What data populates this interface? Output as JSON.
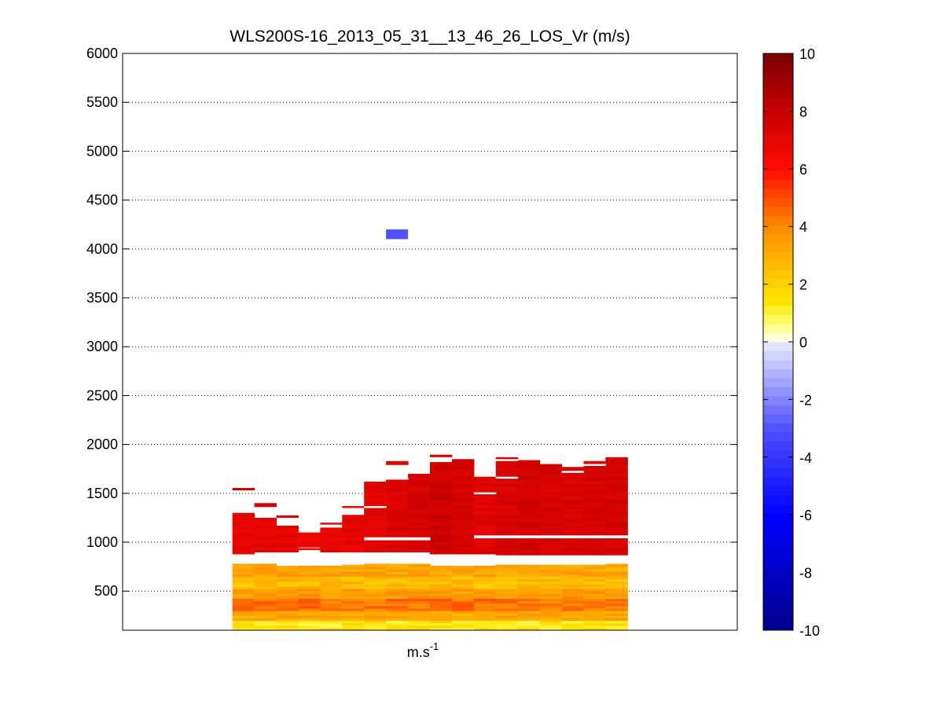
{
  "chart_data": {
    "type": "heatmap",
    "title": "WLS200S-16_2013_05_31__13_46_26_LOS_Vr (m/s)",
    "xlabel_base": "m.s",
    "xlabel_exp": "-1",
    "ylabel": "",
    "ylim": [
      100,
      6000
    ],
    "y_ticks": [
      500,
      1000,
      1500,
      2000,
      2500,
      3000,
      3500,
      4000,
      4500,
      5000,
      5500,
      6000
    ],
    "y_tick_labels": [
      "500",
      "1000",
      "1500",
      "2000",
      "2500",
      "3000",
      "3500",
      "4000",
      "4500",
      "5000",
      "5500",
      "6000"
    ],
    "grid": "horizontal dotted",
    "colorbar": {
      "range": [
        -10,
        10
      ],
      "ticks": [
        -10,
        -8,
        -6,
        -4,
        -2,
        0,
        2,
        4,
        6,
        8,
        10
      ],
      "tick_labels": [
        "-10",
        "-8",
        "-6",
        "-4",
        "-2",
        "0",
        "2",
        "4",
        "6",
        "8",
        "10"
      ]
    },
    "xlim": [
      0,
      28
    ],
    "profiles": [
      {
        "col": 5,
        "lower_top": 780,
        "upper_bottom": 880,
        "upper_top": 1300,
        "upper_v": 7.0,
        "extras": [
          [
            1530,
            1555,
            7.6
          ]
        ]
      },
      {
        "col": 6,
        "lower_top": 780,
        "upper_bottom": 900,
        "upper_top": 1250,
        "upper_v": 7.0,
        "extras": [
          [
            1360,
            1400,
            7.4
          ]
        ]
      },
      {
        "col": 7,
        "lower_top": 760,
        "upper_bottom": 900,
        "upper_top": 1170,
        "upper_v": 7.0,
        "extras": [
          [
            1250,
            1275,
            7.6
          ]
        ]
      },
      {
        "col": 8,
        "lower_top": 760,
        "upper_bottom": 950,
        "upper_top": 1100,
        "upper_v": 6.8,
        "extras": [
          [
            920,
            940,
            7.0
          ]
        ]
      },
      {
        "col": 9,
        "lower_top": 760,
        "upper_bottom": 900,
        "upper_top": 1150,
        "upper_v": 6.8,
        "extras": [
          [
            1180,
            1200,
            7.0
          ]
        ]
      },
      {
        "col": 10,
        "lower_top": 770,
        "upper_bottom": 900,
        "upper_top": 1280,
        "upper_v": 6.9,
        "extras": [
          [
            1350,
            1370,
            6.8
          ]
        ]
      },
      {
        "col": 11,
        "lower_top": 780,
        "upper_bottom": 900,
        "upper_top": 1620,
        "upper_v": 7.1,
        "extras": []
      },
      {
        "col": 12,
        "lower_top": 780,
        "upper_bottom": 900,
        "upper_top": 1650,
        "upper_v": 7.3,
        "extras": [
          [
            1790,
            1830,
            7.2
          ]
        ]
      },
      {
        "col": 13,
        "lower_top": 780,
        "upper_bottom": 900,
        "upper_top": 1700,
        "upper_v": 7.5,
        "extras": []
      },
      {
        "col": 14,
        "lower_top": 760,
        "upper_bottom": 880,
        "upper_top": 1820,
        "upper_v": 7.8,
        "extras": [
          [
            1870,
            1895,
            7.6
          ]
        ]
      },
      {
        "col": 15,
        "lower_top": 760,
        "upper_bottom": 880,
        "upper_top": 1850,
        "upper_v": 7.6,
        "extras": []
      },
      {
        "col": 16,
        "lower_top": 760,
        "upper_bottom": 880,
        "upper_top": 1670,
        "upper_v": 7.2,
        "extras": []
      },
      {
        "col": 17,
        "lower_top": 770,
        "upper_bottom": 870,
        "upper_top": 1870,
        "upper_v": 7.5,
        "extras": []
      },
      {
        "col": 18,
        "lower_top": 770,
        "upper_bottom": 870,
        "upper_top": 1840,
        "upper_v": 7.6,
        "extras": []
      },
      {
        "col": 19,
        "lower_top": 770,
        "upper_bottom": 870,
        "upper_top": 1800,
        "upper_v": 7.5,
        "extras": []
      },
      {
        "col": 20,
        "lower_top": 770,
        "upper_bottom": 870,
        "upper_top": 1770,
        "upper_v": 7.4,
        "extras": []
      },
      {
        "col": 21,
        "lower_top": 770,
        "upper_bottom": 870,
        "upper_top": 1830,
        "upper_v": 7.5,
        "extras": []
      },
      {
        "col": 22,
        "lower_top": 780,
        "upper_bottom": 870,
        "upper_top": 1870,
        "upper_v": 7.6,
        "extras": []
      }
    ],
    "gaps": [
      {
        "col_from": 11,
        "col_to": 13,
        "y0": 1020,
        "y1": 1050
      },
      {
        "col_from": 16,
        "col_to": 22,
        "y0": 1040,
        "y1": 1070
      },
      {
        "col_from": 12,
        "col_to": 12,
        "y0": 1640,
        "y1": 1660
      },
      {
        "col_from": 17,
        "col_to": 17,
        "y0": 1650,
        "y1": 1670
      },
      {
        "col_from": 17,
        "col_to": 17,
        "y0": 1830,
        "y1": 1850
      },
      {
        "col_from": 20,
        "col_to": 20,
        "y0": 1710,
        "y1": 1730
      },
      {
        "col_from": 21,
        "col_to": 21,
        "y0": 1780,
        "y1": 1800
      },
      {
        "col_from": 16,
        "col_to": 16,
        "y0": 1490,
        "y1": 1510
      },
      {
        "col_from": 11,
        "col_to": 11,
        "y0": 1350,
        "y1": 1370
      }
    ],
    "isolated_cells": [
      {
        "x0": 12,
        "x1": 13,
        "y0": 4100,
        "y1": 4200,
        "v": -3.0
      }
    ]
  }
}
